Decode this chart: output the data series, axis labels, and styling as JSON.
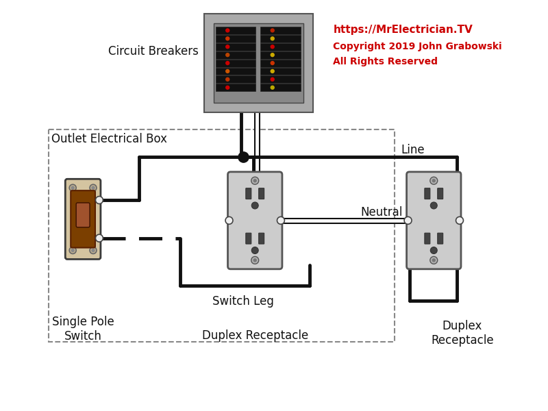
{
  "bg": "#ffffff",
  "wire_black": "#111111",
  "wire_lw": 3.5,
  "panel_gray": "#aaaaaa",
  "panel_inner": "#888888",
  "breaker_bg": "#111111",
  "switch_beige": "#d4c4a0",
  "switch_brown": "#7B3F00",
  "outlet_gray": "#cccccc",
  "dashed_gray": "#888888",
  "red": "#cc0000",
  "black": "#111111",
  "white": "#ffffff",
  "url": "https://MrElectrician.TV",
  "copy1": "Copyright 2019 John Grabowski",
  "copy2": "All Rights Reserved",
  "lbl_cb": "Circuit Breakers",
  "lbl_oeb": "Outlet Electrical Box",
  "lbl_sps": "Single Pole\nSwitch",
  "lbl_sl": "Switch Leg",
  "lbl_dr1": "Duplex Receptacle",
  "lbl_dr2": "Duplex\nReceptacle",
  "lbl_line": "Line",
  "lbl_neutral": "Neutral"
}
